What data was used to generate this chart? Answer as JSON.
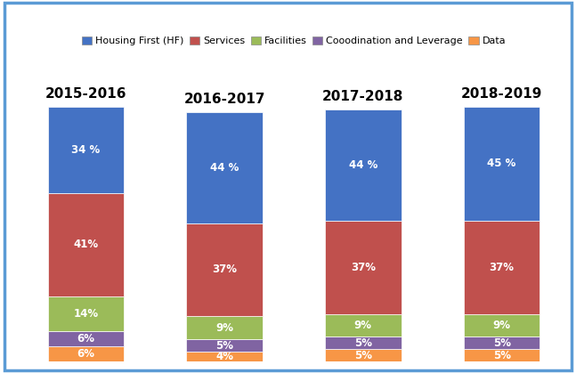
{
  "categories": [
    "2015-2016",
    "2016-2017",
    "2017-2018",
    "2018-2019"
  ],
  "series": {
    "Housing First (HF)": [
      34,
      44,
      44,
      45
    ],
    "Services": [
      41,
      37,
      37,
      37
    ],
    "Facilities": [
      14,
      9,
      9,
      9
    ],
    "Cooodination and Leverage": [
      6,
      5,
      5,
      5
    ],
    "Data": [
      6,
      4,
      5,
      5
    ]
  },
  "colors": {
    "Housing First (HF)": "#4472C4",
    "Services": "#C0504D",
    "Facilities": "#9BBB59",
    "Cooodination and Leverage": "#8064A2",
    "Data": "#F79646"
  },
  "labels": {
    "Housing First (HF)": [
      "34 %",
      "44 %",
      "44 %",
      "45 %"
    ],
    "Services": [
      "41%",
      "37%",
      "37%",
      "37%"
    ],
    "Facilities": [
      "14%",
      "9%",
      "9%",
      "9%"
    ],
    "Cooodination and Leverage": [
      "6%",
      "5%",
      "5%",
      "5%"
    ],
    "Data": [
      "6%",
      "4%",
      "5%",
      "5%"
    ]
  },
  "legend_order": [
    "Housing First (HF)",
    "Services",
    "Facilities",
    "Cooodination and Leverage",
    "Data"
  ],
  "background_color": "#FFFFFF",
  "border_color": "#5B9BD5",
  "bar_width": 0.55,
  "figsize": [
    6.47,
    4.19
  ],
  "dpi": 100
}
